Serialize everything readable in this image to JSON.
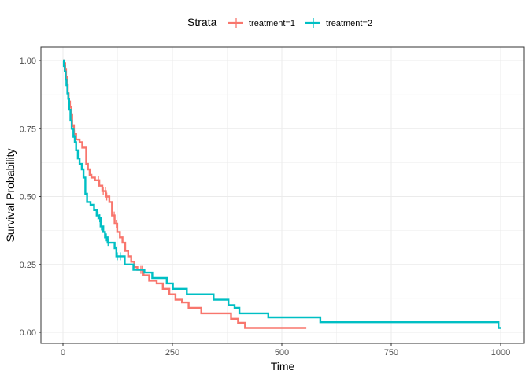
{
  "chart_data": {
    "type": "line",
    "subtype": "kaplan-meier step",
    "title": "",
    "xlabel": "Time",
    "ylabel": "Survival Probability",
    "xlim": [
      0,
      1000
    ],
    "ylim": [
      0,
      1
    ],
    "x_ticks": [
      0,
      250,
      500,
      750,
      1000
    ],
    "x_tick_labels": [
      "0",
      "250",
      "500",
      "750",
      "1000"
    ],
    "y_ticks": [
      0,
      0.25,
      0.5,
      0.75,
      1
    ],
    "y_tick_labels": [
      "0.00",
      "0.25",
      "0.50",
      "0.75",
      "1.00"
    ],
    "grid": true,
    "legend": {
      "title": "Strata",
      "position": "top"
    },
    "series": [
      {
        "name": "treatment=1",
        "color": "#F8766D",
        "steps": [
          [
            0,
            1.0
          ],
          [
            3,
            0.99
          ],
          [
            5,
            0.97
          ],
          [
            7,
            0.94
          ],
          [
            9,
            0.91
          ],
          [
            11,
            0.88
          ],
          [
            13,
            0.85
          ],
          [
            16,
            0.83
          ],
          [
            19,
            0.8
          ],
          [
            21,
            0.76
          ],
          [
            25,
            0.73
          ],
          [
            30,
            0.71
          ],
          [
            38,
            0.7
          ],
          [
            44,
            0.68
          ],
          [
            53,
            0.62
          ],
          [
            57,
            0.6
          ],
          [
            61,
            0.58
          ],
          [
            65,
            0.57
          ],
          [
            73,
            0.56
          ],
          [
            83,
            0.54
          ],
          [
            90,
            0.52
          ],
          [
            98,
            0.5
          ],
          [
            106,
            0.48
          ],
          [
            112,
            0.43
          ],
          [
            118,
            0.4
          ],
          [
            124,
            0.37
          ],
          [
            130,
            0.35
          ],
          [
            136,
            0.33
          ],
          [
            142,
            0.3
          ],
          [
            149,
            0.28
          ],
          [
            156,
            0.26
          ],
          [
            163,
            0.24
          ],
          [
            170,
            0.23
          ],
          [
            184,
            0.21
          ],
          [
            197,
            0.19
          ],
          [
            214,
            0.18
          ],
          [
            228,
            0.16
          ],
          [
            243,
            0.14
          ],
          [
            257,
            0.12
          ],
          [
            272,
            0.11
          ],
          [
            287,
            0.09
          ],
          [
            316,
            0.07
          ],
          [
            384,
            0.05
          ],
          [
            400,
            0.035
          ],
          [
            416,
            0.016
          ],
          [
            556,
            0.016
          ]
        ],
        "censor_times": [
          26,
          81,
          92,
          97,
          100,
          117,
          122,
          178,
          182
        ]
      },
      {
        "name": "treatment=2",
        "color": "#00BFC4",
        "steps": [
          [
            0,
            1.0
          ],
          [
            2,
            0.98
          ],
          [
            4,
            0.96
          ],
          [
            6,
            0.93
          ],
          [
            8,
            0.91
          ],
          [
            10,
            0.88
          ],
          [
            12,
            0.86
          ],
          [
            14,
            0.82
          ],
          [
            17,
            0.78
          ],
          [
            20,
            0.75
          ],
          [
            24,
            0.72
          ],
          [
            27,
            0.7
          ],
          [
            30,
            0.67
          ],
          [
            34,
            0.64
          ],
          [
            38,
            0.62
          ],
          [
            43,
            0.6
          ],
          [
            47,
            0.57
          ],
          [
            51,
            0.51
          ],
          [
            55,
            0.48
          ],
          [
            63,
            0.47
          ],
          [
            71,
            0.45
          ],
          [
            77,
            0.43
          ],
          [
            83,
            0.42
          ],
          [
            86,
            0.39
          ],
          [
            92,
            0.37
          ],
          [
            96,
            0.35
          ],
          [
            102,
            0.33
          ],
          [
            118,
            0.31
          ],
          [
            122,
            0.28
          ],
          [
            141,
            0.25
          ],
          [
            161,
            0.23
          ],
          [
            186,
            0.22
          ],
          [
            204,
            0.2
          ],
          [
            237,
            0.18
          ],
          [
            251,
            0.16
          ],
          [
            283,
            0.14
          ],
          [
            344,
            0.12
          ],
          [
            378,
            0.1
          ],
          [
            392,
            0.09
          ],
          [
            403,
            0.07
          ],
          [
            469,
            0.055
          ],
          [
            588,
            0.037
          ],
          [
            995,
            0.016
          ],
          [
            1000,
            0.016
          ]
        ],
        "censor_times": [
          80,
          84,
          88,
          99,
          103,
          124,
          131
        ]
      }
    ]
  }
}
